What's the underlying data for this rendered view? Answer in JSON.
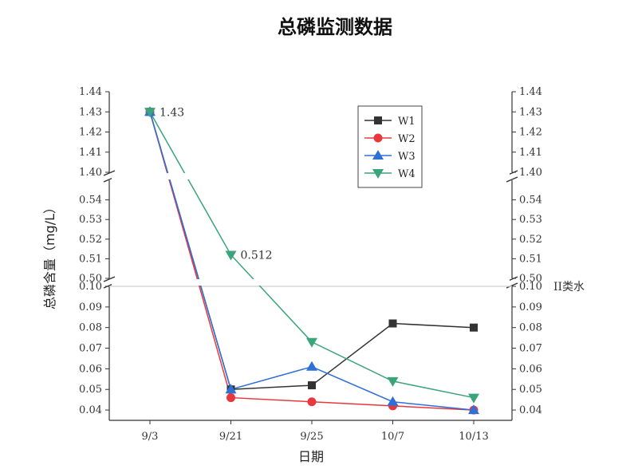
{
  "chart_data": {
    "type": "line",
    "title": "总磷监测数据",
    "xlabel": "日期",
    "ylabel": "总磷含量（mg/L）",
    "categories": [
      "9/3",
      "9/21",
      "9/25",
      "10/7",
      "10/13"
    ],
    "y_axis": {
      "broken": true,
      "segments": [
        {
          "range": [
            0.035,
            0.1
          ],
          "ticks": [
            "0.04",
            "0.05",
            "0.06",
            "0.07",
            "0.08",
            "0.09",
            "0.10"
          ]
        },
        {
          "range": [
            0.5,
            0.55
          ],
          "ticks": [
            "0.50",
            "0.51",
            "0.52",
            "0.53",
            "0.54"
          ]
        },
        {
          "range": [
            1.4,
            1.44
          ],
          "ticks": [
            "1.40",
            "1.41",
            "1.42",
            "1.43",
            "1.44"
          ]
        }
      ]
    },
    "series": [
      {
        "name": "W1",
        "color": "#333333",
        "marker": "square",
        "values": [
          1.43,
          0.05,
          0.052,
          0.082,
          0.08
        ]
      },
      {
        "name": "W2",
        "color": "#e8383d",
        "marker": "circle",
        "values": [
          1.43,
          0.046,
          0.044,
          0.042,
          0.04
        ]
      },
      {
        "name": "W3",
        "color": "#2f6fd6",
        "marker": "triangle-up",
        "values": [
          1.43,
          0.05,
          0.061,
          0.044,
          0.04
        ]
      },
      {
        "name": "W4",
        "color": "#3aa47a",
        "marker": "triangle-down",
        "values": [
          1.43,
          0.512,
          0.073,
          0.054,
          0.046
        ]
      }
    ],
    "annotations": [
      {
        "text": "1.43",
        "x": "9/3",
        "y": 1.43
      },
      {
        "text": "0.512",
        "x": "9/21",
        "y": 0.512
      }
    ],
    "reference_line": {
      "label": "II类水",
      "y": 0.1
    },
    "legend": {
      "position": "top-right",
      "entries": [
        "W1",
        "W2",
        "W3",
        "W4"
      ]
    },
    "grid": false
  }
}
